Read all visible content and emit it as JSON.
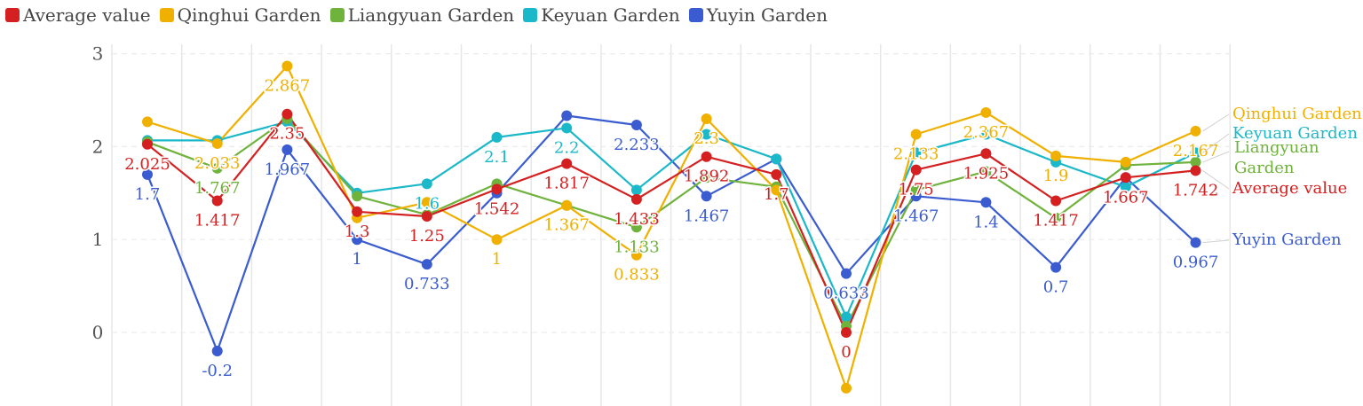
{
  "chart_data": {
    "type": "line",
    "title": "",
    "xlabel": "",
    "ylabel": "",
    "ylim": [
      -0.75,
      3.1
    ],
    "y_ticks": [
      0,
      1,
      2,
      3
    ],
    "grid": true,
    "legend_position": "top-left",
    "x": [
      1,
      2,
      3,
      4,
      5,
      6,
      7,
      8,
      9,
      10,
      11,
      12,
      13,
      14,
      15,
      16,
      17
    ],
    "series": [
      {
        "name": "Average value",
        "color": "#d42020",
        "values": [
          2.025,
          1.417,
          2.35,
          1.3,
          1.25,
          1.542,
          1.817,
          1.433,
          1.892,
          1.7,
          0,
          1.75,
          1.925,
          1.417,
          1.667,
          1.742,
          null
        ]
      },
      {
        "name": "Qinghui Garden",
        "color": "#f0b000",
        "values": [
          2.267,
          2.033,
          2.867,
          1.233,
          1.4,
          1.0,
          1.367,
          0.833,
          2.3,
          1.533,
          -0.6,
          2.133,
          2.367,
          1.9,
          1.833,
          2.167,
          null
        ]
      },
      {
        "name": "Liangyuan Garden",
        "color": "#6fb23c",
        "values": [
          2.05,
          1.767,
          2.3,
          1.467,
          1.267,
          1.6,
          1.367,
          1.133,
          1.667,
          1.567,
          0.067,
          1.533,
          1.733,
          1.233,
          1.8,
          1.833,
          null
        ]
      },
      {
        "name": "Keyuan Garden",
        "color": "#1ab8c8",
        "values": [
          2.067,
          2.067,
          2.267,
          1.5,
          1.6,
          2.1,
          2.2,
          1.533,
          2.133,
          1.867,
          0.167,
          1.933,
          2.133,
          1.833,
          1.567,
          1.933,
          null
        ]
      },
      {
        "name": "Yuyin Garden",
        "color": "#3a5cd0",
        "values": [
          1.7,
          -0.2,
          1.967,
          1.0,
          0.733,
          1.5,
          2.333,
          2.233,
          1.467,
          1.867,
          0.633,
          1.467,
          1.4,
          0.7,
          1.667,
          0.967,
          null
        ]
      }
    ],
    "data_labels": [
      {
        "series": 0,
        "i": 0,
        "text": "2.025"
      },
      {
        "series": 0,
        "i": 1,
        "text": "1.417"
      },
      {
        "series": 0,
        "i": 2,
        "text": "2.35"
      },
      {
        "series": 0,
        "i": 3,
        "text": "1.3"
      },
      {
        "series": 0,
        "i": 4,
        "text": "1.25"
      },
      {
        "series": 0,
        "i": 5,
        "text": "1.542"
      },
      {
        "series": 0,
        "i": 6,
        "text": "1.817"
      },
      {
        "series": 0,
        "i": 7,
        "text": "1.433"
      },
      {
        "series": 0,
        "i": 8,
        "text": "1.892"
      },
      {
        "series": 0,
        "i": 9,
        "text": "1.7"
      },
      {
        "series": 0,
        "i": 10,
        "text": "0"
      },
      {
        "series": 0,
        "i": 11,
        "text": "1.75"
      },
      {
        "series": 0,
        "i": 12,
        "text": "1.925"
      },
      {
        "series": 0,
        "i": 13,
        "text": "1.417"
      },
      {
        "series": 0,
        "i": 14,
        "text": "1.667"
      },
      {
        "series": 0,
        "i": 15,
        "text": "1.742"
      },
      {
        "series": 1,
        "i": 1,
        "text": "2.033"
      },
      {
        "series": 1,
        "i": 2,
        "text": "2.867"
      },
      {
        "series": 1,
        "i": 5,
        "text": "1"
      },
      {
        "series": 1,
        "i": 6,
        "text": "1.367"
      },
      {
        "series": 1,
        "i": 7,
        "text": "0.833"
      },
      {
        "series": 1,
        "i": 8,
        "text": "2.3"
      },
      {
        "series": 1,
        "i": 11,
        "text": "2.133"
      },
      {
        "series": 1,
        "i": 12,
        "text": "2.367"
      },
      {
        "series": 1,
        "i": 13,
        "text": "1.9"
      },
      {
        "series": 1,
        "i": 15,
        "text": "2.167"
      },
      {
        "series": 2,
        "i": 1,
        "text": "1.767"
      },
      {
        "series": 2,
        "i": 7,
        "text": "1.133"
      },
      {
        "series": 3,
        "i": 4,
        "text": "1.6"
      },
      {
        "series": 3,
        "i": 5,
        "text": "2.1"
      },
      {
        "series": 3,
        "i": 6,
        "text": "2.2"
      },
      {
        "series": 4,
        "i": 0,
        "text": "1.7"
      },
      {
        "series": 4,
        "i": 1,
        "text": "-0.2"
      },
      {
        "series": 4,
        "i": 2,
        "text": "1.967"
      },
      {
        "series": 4,
        "i": 3,
        "text": "1"
      },
      {
        "series": 4,
        "i": 4,
        "text": "0.733"
      },
      {
        "series": 4,
        "i": 7,
        "text": "2.233"
      },
      {
        "series": 4,
        "i": 8,
        "text": "1.467"
      },
      {
        "series": 4,
        "i": 10,
        "text": "0.633"
      },
      {
        "series": 4,
        "i": 11,
        "text": "1.467"
      },
      {
        "series": 4,
        "i": 12,
        "text": "1.4"
      },
      {
        "series": 4,
        "i": 13,
        "text": "0.7"
      },
      {
        "series": 4,
        "i": 15,
        "text": "0.967"
      }
    ],
    "end_labels": [
      {
        "series": 1,
        "text": "Qinghui Garden"
      },
      {
        "series": 3,
        "text": "Keyuan Garden"
      },
      {
        "series": 2,
        "text": "Liangyuan Garden"
      },
      {
        "series": 0,
        "text": "Average value"
      },
      {
        "series": 4,
        "text": "Yuyin Garden"
      }
    ]
  }
}
